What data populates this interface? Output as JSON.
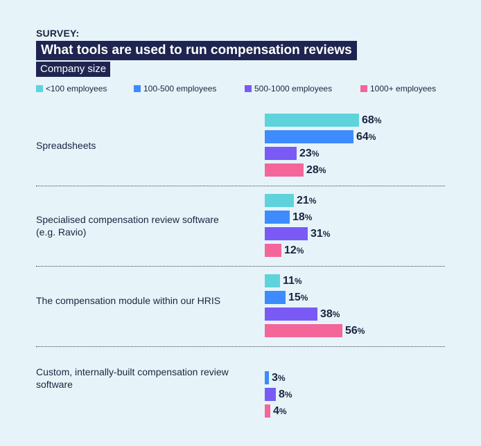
{
  "header": {
    "kicker": "SURVEY:",
    "title": "What tools are used to run compensation reviews",
    "subtitle": "Company size"
  },
  "chart_data": {
    "type": "bar",
    "orientation": "horizontal",
    "title": "What tools are used to run compensation reviews",
    "unit": "%",
    "legend_placement": "top",
    "grid": false,
    "xlim": [
      0,
      100
    ],
    "series": [
      {
        "name": "<100 employees",
        "color": "#5fd3dc"
      },
      {
        "name": "100-500 employees",
        "color": "#3d8bfd"
      },
      {
        "name": "500-1000 employees",
        "color": "#7a5af5"
      },
      {
        "name": "1000+ employees",
        "color": "#f4669a"
      }
    ],
    "categories": [
      {
        "label": "Spreadsheets",
        "values": [
          68,
          64,
          23,
          28
        ]
      },
      {
        "label": "Specialised compensation review software (e.g. Ravio)",
        "values": [
          21,
          18,
          31,
          12
        ]
      },
      {
        "label": "The compensation module within our HRIS",
        "values": [
          11,
          15,
          38,
          56
        ]
      },
      {
        "label": "Custom, internally-built compensation review software",
        "values": [
          null,
          3,
          8,
          4
        ]
      }
    ]
  }
}
